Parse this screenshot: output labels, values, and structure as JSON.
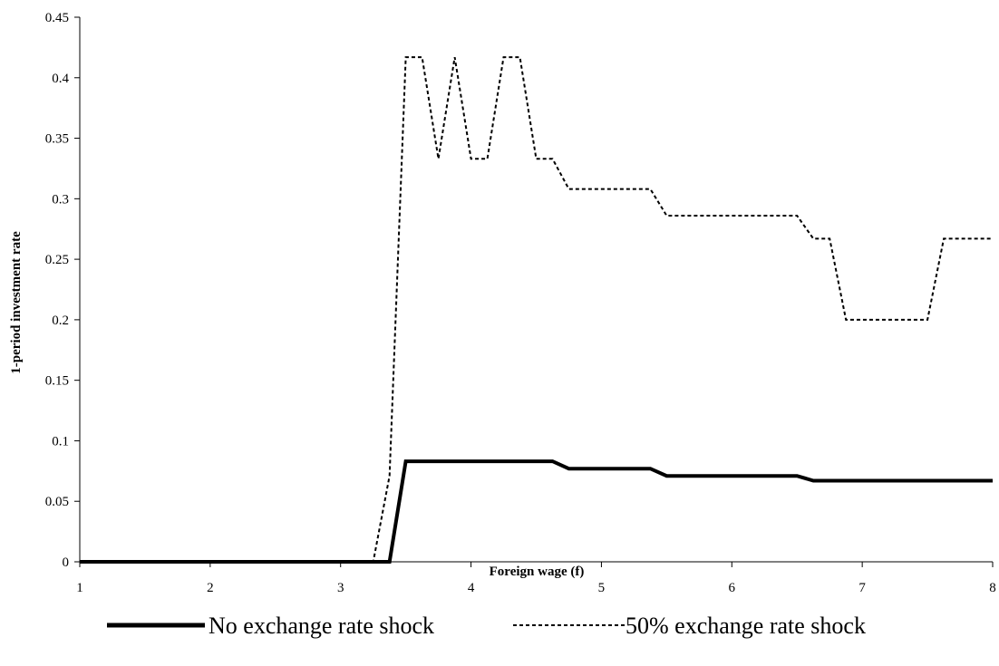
{
  "chart_data": {
    "type": "line",
    "title": "",
    "xlabel": "Foreign wage (f)",
    "ylabel": "1-period investment rate",
    "xlim": [
      1,
      8
    ],
    "ylim": [
      0,
      0.45
    ],
    "x_ticks": [
      "1",
      "2",
      "3",
      "4",
      "5",
      "6",
      "7",
      "8"
    ],
    "y_ticks": [
      "0",
      "0.05",
      "0.1",
      "0.15",
      "0.2",
      "0.25",
      "0.3",
      "0.35",
      "0.4",
      "0.45"
    ],
    "grid": false,
    "legend_position": "bottom",
    "series": [
      {
        "name": "No exchange rate shock",
        "style": "solid-thick",
        "color": "#000000",
        "x": [
          1,
          3.375,
          3.5,
          3.625,
          3.75,
          3.875,
          4.0,
          4.125,
          4.25,
          4.375,
          4.5,
          4.625,
          4.75,
          4.875,
          5.0,
          5.125,
          5.25,
          5.375,
          5.5,
          5.625,
          5.75,
          5.875,
          6.0,
          6.125,
          6.25,
          6.375,
          6.5,
          6.625,
          6.75,
          6.875,
          7.0,
          7.125,
          7.25,
          7.375,
          7.5,
          7.625,
          7.75,
          7.875,
          8.0
        ],
        "y": [
          0,
          0,
          0.083,
          0.083,
          0.083,
          0.083,
          0.083,
          0.083,
          0.083,
          0.083,
          0.083,
          0.083,
          0.077,
          0.077,
          0.077,
          0.077,
          0.077,
          0.077,
          0.071,
          0.071,
          0.071,
          0.071,
          0.071,
          0.071,
          0.071,
          0.071,
          0.071,
          0.067,
          0.067,
          0.067,
          0.067,
          0.067,
          0.067,
          0.067,
          0.067,
          0.067,
          0.067,
          0.067,
          0.067
        ]
      },
      {
        "name": "50% exchange rate shock",
        "style": "dashed",
        "color": "#000000",
        "x": [
          1,
          3.25,
          3.375,
          3.5,
          3.625,
          3.75,
          3.875,
          4.0,
          4.125,
          4.25,
          4.375,
          4.5,
          4.625,
          4.75,
          4.875,
          5.0,
          5.125,
          5.25,
          5.375,
          5.5,
          5.625,
          5.75,
          5.875,
          6.0,
          6.125,
          6.25,
          6.375,
          6.5,
          6.625,
          6.75,
          6.875,
          7.0,
          7.125,
          7.25,
          7.375,
          7.5,
          7.625,
          7.75,
          7.875,
          8.0
        ],
        "y": [
          0,
          0,
          0.071,
          0.417,
          0.417,
          0.333,
          0.417,
          0.333,
          0.333,
          0.417,
          0.417,
          0.333,
          0.333,
          0.308,
          0.308,
          0.308,
          0.308,
          0.308,
          0.308,
          0.286,
          0.286,
          0.286,
          0.286,
          0.286,
          0.286,
          0.286,
          0.286,
          0.286,
          0.267,
          0.267,
          0.2,
          0.2,
          0.2,
          0.2,
          0.2,
          0.2,
          0.267,
          0.267,
          0.267,
          0.267
        ]
      }
    ]
  }
}
